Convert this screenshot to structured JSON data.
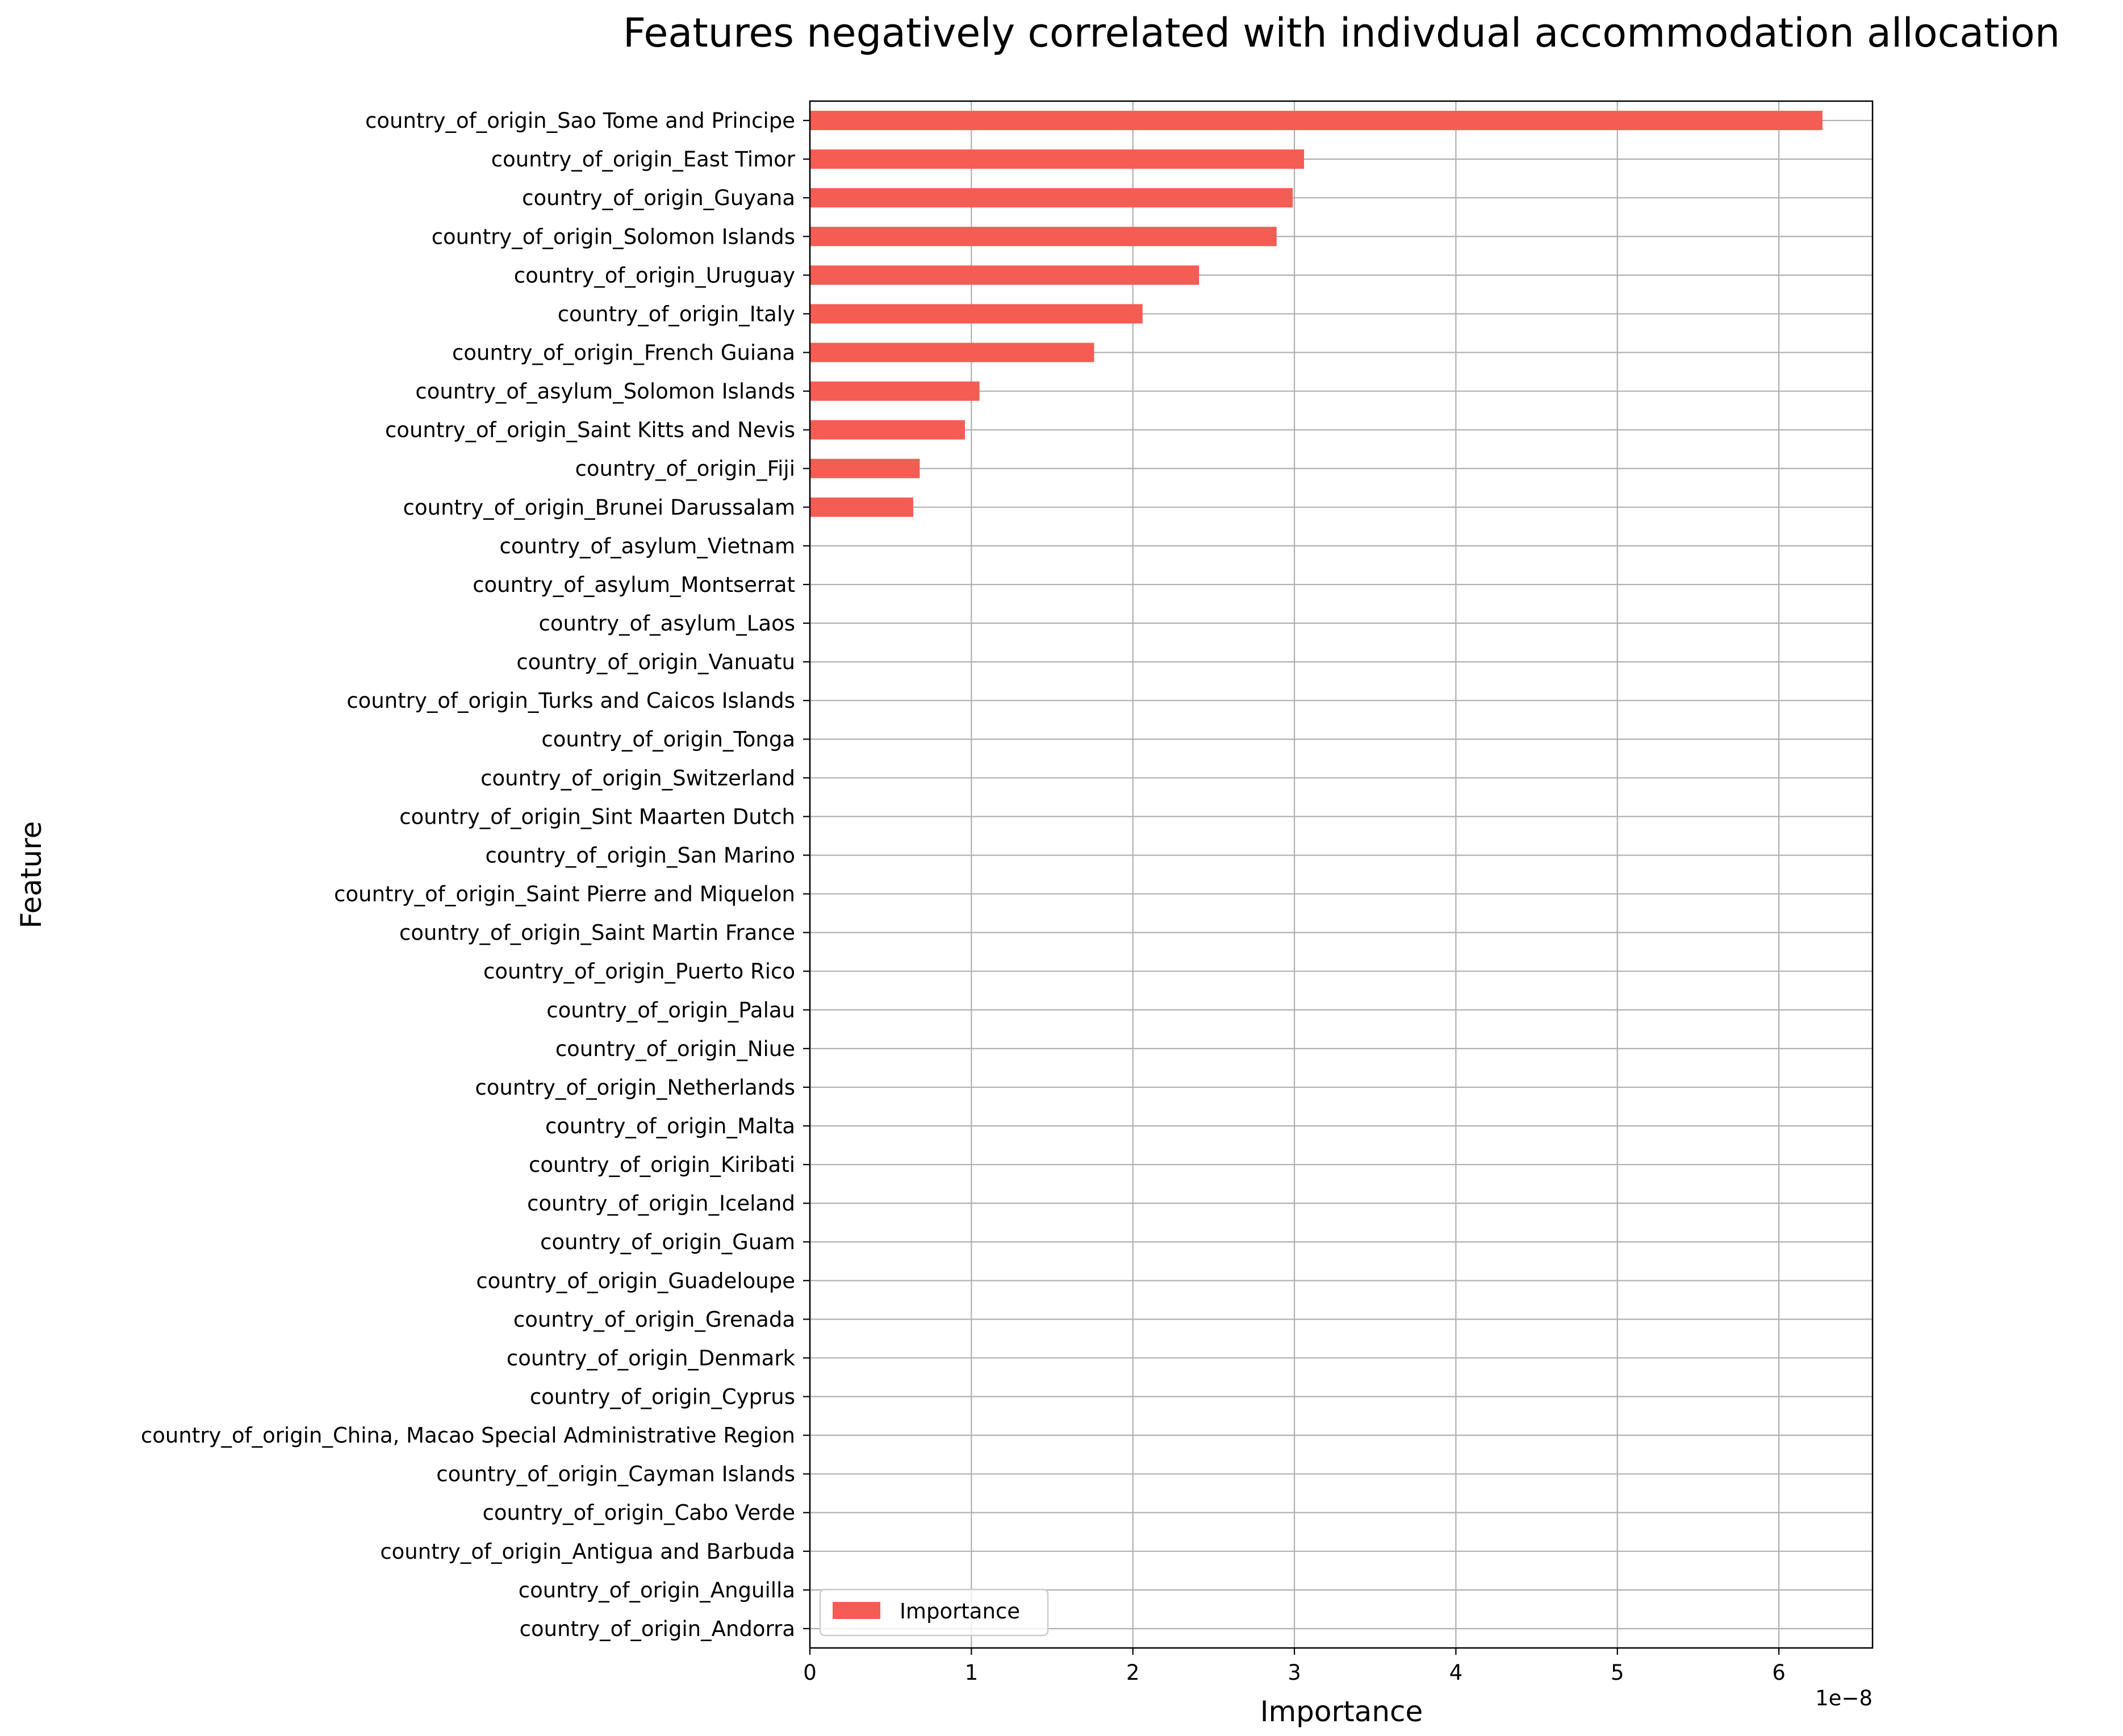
{
  "chart_data": {
    "type": "bar",
    "orientation": "horizontal",
    "title": "Features negatively correlated with indivdual accommodation allocation",
    "xlabel": "Importance",
    "ylabel": "Feature",
    "x_offset_label": "1e−8",
    "xlim": [
      0,
      6.58
    ],
    "xticks": [
      "0",
      "1",
      "2",
      "3",
      "4",
      "5",
      "6"
    ],
    "grid": true,
    "legend": {
      "position": "lower-left",
      "entries": [
        "Importance"
      ]
    },
    "bar_color": "#f45d54",
    "series": [
      {
        "name": "Importance",
        "unit_scale": "1e-8",
        "items": [
          {
            "label": "country_of_origin_Sao Tome and Principe",
            "value": 6.27
          },
          {
            "label": "country_of_origin_East Timor",
            "value": 3.06
          },
          {
            "label": "country_of_origin_Guyana",
            "value": 2.99
          },
          {
            "label": "country_of_origin_Solomon Islands",
            "value": 2.89
          },
          {
            "label": "country_of_origin_Uruguay",
            "value": 2.41
          },
          {
            "label": "country_of_origin_Italy",
            "value": 2.06
          },
          {
            "label": "country_of_origin_French Guiana",
            "value": 1.76
          },
          {
            "label": "country_of_asylum_Solomon Islands",
            "value": 1.05
          },
          {
            "label": "country_of_origin_Saint Kitts and Nevis",
            "value": 0.96
          },
          {
            "label": "country_of_origin_Fiji",
            "value": 0.68
          },
          {
            "label": "country_of_origin_Brunei Darussalam",
            "value": 0.64
          },
          {
            "label": "country_of_asylum_Vietnam",
            "value": 0
          },
          {
            "label": "country_of_asylum_Montserrat",
            "value": 0
          },
          {
            "label": "country_of_asylum_Laos",
            "value": 0
          },
          {
            "label": "country_of_origin_Vanuatu",
            "value": 0
          },
          {
            "label": "country_of_origin_Turks and Caicos Islands",
            "value": 0
          },
          {
            "label": "country_of_origin_Tonga",
            "value": 0
          },
          {
            "label": "country_of_origin_Switzerland",
            "value": 0
          },
          {
            "label": "country_of_origin_Sint Maarten Dutch",
            "value": 0
          },
          {
            "label": "country_of_origin_San Marino",
            "value": 0
          },
          {
            "label": "country_of_origin_Saint Pierre and Miquelon",
            "value": 0
          },
          {
            "label": "country_of_origin_Saint Martin France",
            "value": 0
          },
          {
            "label": "country_of_origin_Puerto Rico",
            "value": 0
          },
          {
            "label": "country_of_origin_Palau",
            "value": 0
          },
          {
            "label": "country_of_origin_Niue",
            "value": 0
          },
          {
            "label": "country_of_origin_Netherlands",
            "value": 0
          },
          {
            "label": "country_of_origin_Malta",
            "value": 0
          },
          {
            "label": "country_of_origin_Kiribati",
            "value": 0
          },
          {
            "label": "country_of_origin_Iceland",
            "value": 0
          },
          {
            "label": "country_of_origin_Guam",
            "value": 0
          },
          {
            "label": "country_of_origin_Guadeloupe",
            "value": 0
          },
          {
            "label": "country_of_origin_Grenada",
            "value": 0
          },
          {
            "label": "country_of_origin_Denmark",
            "value": 0
          },
          {
            "label": "country_of_origin_Cyprus",
            "value": 0
          },
          {
            "label": "country_of_origin_China, Macao Special Administrative Region",
            "value": 0
          },
          {
            "label": "country_of_origin_Cayman Islands",
            "value": 0
          },
          {
            "label": "country_of_origin_Cabo Verde",
            "value": 0
          },
          {
            "label": "country_of_origin_Antigua and Barbuda",
            "value": 0
          },
          {
            "label": "country_of_origin_Anguilla",
            "value": 0
          },
          {
            "label": "country_of_origin_Andorra",
            "value": 0
          }
        ]
      }
    ]
  }
}
